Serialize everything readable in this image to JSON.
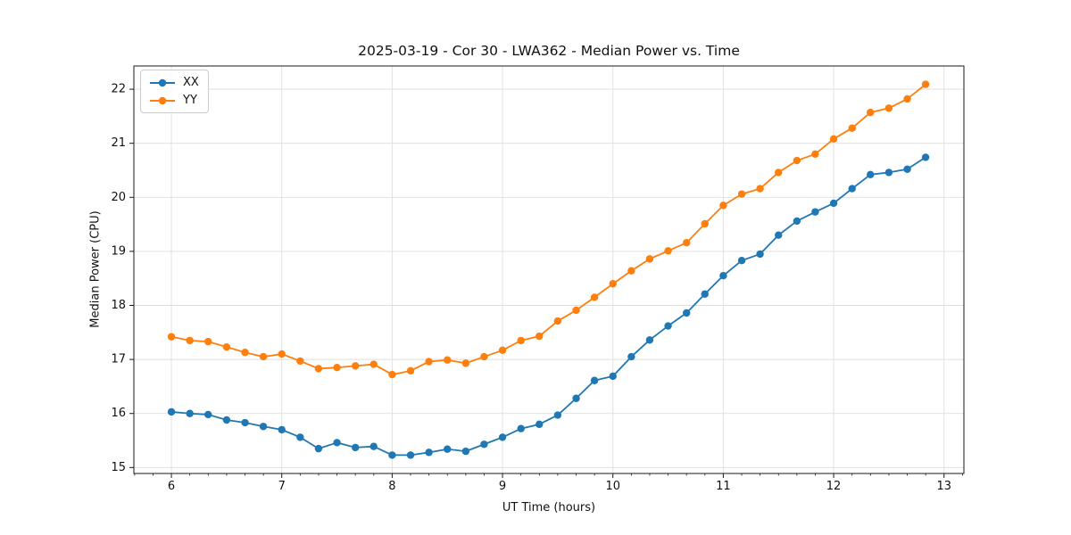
{
  "chart_data": {
    "type": "line",
    "title": "2025-03-19 - Cor 30 - LWA362 - Median Power vs. Time",
    "xlabel": "UT Time (hours)",
    "ylabel": "Median Power (CPU)",
    "x": [
      6.0,
      6.167,
      6.333,
      6.5,
      6.667,
      6.833,
      7.0,
      7.167,
      7.333,
      7.5,
      7.667,
      7.833,
      8.0,
      8.167,
      8.333,
      8.5,
      8.667,
      8.833,
      9.0,
      9.167,
      9.333,
      9.5,
      9.667,
      9.833,
      10.0,
      10.167,
      10.333,
      10.5,
      10.667,
      10.833,
      11.0,
      11.167,
      11.333,
      11.5,
      11.667,
      11.833,
      12.0,
      12.167,
      12.333,
      12.5,
      12.667,
      12.833
    ],
    "series": [
      {
        "name": "XX",
        "color": "#1f77b4",
        "values": [
          16.03,
          16.0,
          15.98,
          15.88,
          15.83,
          15.76,
          15.7,
          15.56,
          15.35,
          15.46,
          15.37,
          15.39,
          15.23,
          15.23,
          15.28,
          15.34,
          15.3,
          15.43,
          15.56,
          15.72,
          15.8,
          15.97,
          16.28,
          16.61,
          16.69,
          17.05,
          17.36,
          17.62,
          17.86,
          18.21,
          18.55,
          18.83,
          18.95,
          19.3,
          19.56,
          19.73,
          19.89,
          20.16,
          20.42,
          20.46,
          20.52,
          20.74
        ]
      },
      {
        "name": "YY",
        "color": "#ff7f0e",
        "values": [
          17.42,
          17.35,
          17.33,
          17.23,
          17.13,
          17.05,
          17.1,
          16.97,
          16.83,
          16.85,
          16.88,
          16.91,
          16.72,
          16.79,
          16.96,
          16.99,
          16.93,
          17.05,
          17.17,
          17.35,
          17.43,
          17.71,
          17.91,
          18.15,
          18.4,
          18.64,
          18.86,
          19.01,
          19.16,
          19.51,
          19.85,
          20.06,
          20.16,
          20.46,
          20.68,
          20.8,
          21.08,
          21.28,
          21.57,
          21.65,
          21.82,
          22.09
        ]
      }
    ],
    "xlim": [
      5.66,
      13.18
    ],
    "ylim": [
      14.89,
      22.43
    ],
    "x_ticks": [
      6,
      7,
      8,
      9,
      10,
      11,
      12,
      13
    ],
    "y_ticks": [
      15,
      16,
      17,
      18,
      19,
      20,
      21,
      22
    ],
    "x_minor_tick_step": 0.16667,
    "grid": "major",
    "grid_color": "#dedede",
    "spine_color": "#1a1a1a",
    "tick_label_color": "#111111",
    "legend_position": "upper-left",
    "marker": "circle"
  }
}
